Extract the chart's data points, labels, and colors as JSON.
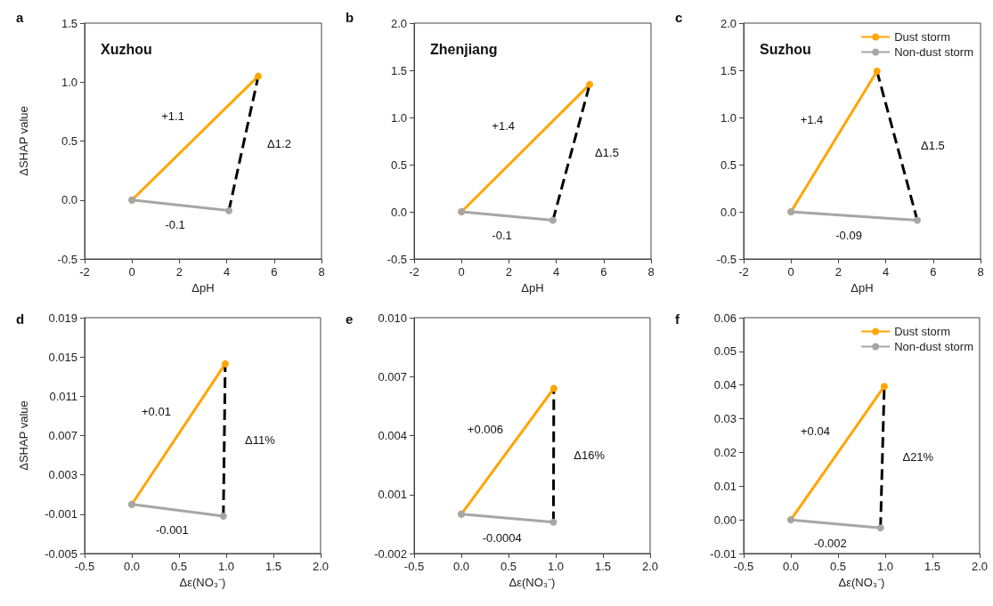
{
  "chart_data": [
    {
      "type": "line",
      "title": "Xuzhou",
      "xlabel": "ΔpH",
      "ylabel": "ΔSHAP value",
      "marker": "circle",
      "xlim": [
        -2,
        8
      ],
      "xticks": [
        -2,
        0,
        2,
        4,
        6,
        8
      ],
      "ylim": [
        -0.5,
        1.5
      ],
      "yticks": [
        -0.5,
        {
          "value": 0,
          "label": "0.0"
        },
        0.5,
        {
          "value": 1,
          "label": "1.0"
        },
        1.5
      ],
      "series": [
        {
          "color": "#ffa500",
          "x": [
            0,
            5.33
          ],
          "values": [
            0,
            1.05
          ]
        },
        {
          "color": "#a6a6a6",
          "x": [
            0,
            4.09
          ],
          "values": [
            0,
            -0.09
          ]
        },
        {
          "color": "#000000",
          "x": [
            4.09,
            5.33
          ],
          "values": [
            -0.09,
            1.05
          ],
          "marker": "none",
          "line_style": "dashed"
        }
      ],
      "annotations": [
        "a",
        "+1.1",
        "-0.1",
        "Δ1.2"
      ]
    },
    {
      "type": "line",
      "title": "Zhenjiang",
      "xlabel": "ΔpH",
      "marker": "circle",
      "xlim": [
        -2,
        8
      ],
      "xticks": [
        -2,
        0,
        2,
        4,
        6,
        8
      ],
      "ylim": [
        -0.5,
        2
      ],
      "yticks": [
        -0.5,
        {
          "value": 0,
          "label": "0.0"
        },
        0.5,
        {
          "value": 1,
          "label": "1.0"
        },
        1.5,
        {
          "value": 2,
          "label": "2.0"
        }
      ],
      "series": [
        {
          "color": "#ffa500",
          "x": [
            0,
            5.41
          ],
          "values": [
            0,
            1.35
          ]
        },
        {
          "color": "#a6a6a6",
          "x": [
            0,
            3.86
          ],
          "values": [
            0,
            -0.09
          ]
        },
        {
          "color": "#000000",
          "x": [
            3.86,
            5.41
          ],
          "values": [
            -0.09,
            1.35
          ],
          "marker": "none",
          "line_style": "dashed"
        }
      ],
      "annotations": [
        "b",
        "+1.4",
        "-0.1",
        "Δ1.5"
      ]
    },
    {
      "type": "line",
      "title": "Suzhou",
      "xlabel": "ΔpH",
      "marker": "circle",
      "legend": "top right",
      "xlim": [
        -2,
        8
      ],
      "xticks": [
        -2,
        0,
        2,
        4,
        6,
        8
      ],
      "ylim": [
        -0.5,
        2
      ],
      "yticks": [
        -0.5,
        {
          "value": 0,
          "label": "0.0"
        },
        0.5,
        {
          "value": 1,
          "label": "1.0"
        },
        1.5,
        {
          "value": 2,
          "label": "2.0"
        }
      ],
      "series": [
        {
          "name": "Dust storm",
          "color": "#ffa500",
          "x": [
            0,
            3.63
          ],
          "values": [
            0,
            1.49
          ]
        },
        {
          "name": "Non-dust storm",
          "color": "#a6a6a6",
          "x": [
            0,
            5.33
          ],
          "values": [
            0,
            -0.09
          ]
        },
        {
          "color": "#000000",
          "x": [
            3.63,
            5.33
          ],
          "values": [
            1.49,
            -0.09
          ],
          "marker": "none",
          "line_style": "dashed"
        }
      ],
      "annotations": [
        "c",
        "+1.4",
        "-0.09",
        "Δ1.5"
      ]
    },
    {
      "type": "line",
      "xlabel": "Δε(NO₃⁻)",
      "ylabel": "ΔSHAP value",
      "marker": "circle",
      "xlim": [
        -0.5,
        2
      ],
      "xticks": [
        -0.5,
        {
          "value": 0,
          "label": "0.0"
        },
        0.5,
        {
          "value": 1,
          "label": "1.0"
        },
        1.5,
        {
          "value": 2,
          "label": "2.0"
        }
      ],
      "ylim": [
        -0.005,
        0.019
      ],
      "yticks": [
        -0.005,
        -0.001,
        0.003,
        0.007,
        0.011,
        0.015,
        0.019
      ],
      "series": [
        {
          "color": "#ffa500",
          "x": [
            0,
            0.99
          ],
          "values": [
            0,
            0.0143
          ]
        },
        {
          "color": "#a6a6a6",
          "x": [
            0,
            0.97
          ],
          "values": [
            0,
            -0.0012
          ]
        },
        {
          "color": "#000000",
          "x": [
            0.97,
            0.99
          ],
          "values": [
            -0.0012,
            0.0143
          ],
          "marker": "none",
          "line_style": "dashed"
        }
      ],
      "annotations": [
        "d",
        "+0.01",
        "-0.001",
        "Δ11%"
      ]
    },
    {
      "type": "line",
      "xlabel": "Δε(NO₃⁻)",
      "marker": "circle",
      "xlim": [
        -0.5,
        2
      ],
      "xticks": [
        -0.5,
        {
          "value": 0,
          "label": "0.0"
        },
        0.5,
        {
          "value": 1,
          "label": "1.0"
        },
        1.5,
        {
          "value": 2,
          "label": "2.0"
        }
      ],
      "ylim": [
        -0.002,
        0.01
      ],
      "yticks": [
        -0.002,
        0.001,
        0.004,
        0.007,
        {
          "value": 0.01,
          "label": "0.010"
        }
      ],
      "series": [
        {
          "color": "#ffa500",
          "x": [
            0,
            0.98
          ],
          "values": [
            0,
            0.0064
          ]
        },
        {
          "color": "#a6a6a6",
          "x": [
            0,
            0.976
          ],
          "values": [
            0,
            -0.0004
          ]
        },
        {
          "color": "#000000",
          "x": [
            0.976,
            0.98
          ],
          "values": [
            -0.0004,
            0.0064
          ],
          "marker": "none",
          "line_style": "dashed"
        }
      ],
      "annotations": [
        "e",
        "+0.006",
        "-0.0004",
        "Δ16%"
      ]
    },
    {
      "type": "line",
      "xlabel": "Δε(NO₃⁻)",
      "marker": "circle",
      "legend": "top right",
      "xlim": [
        -0.5,
        2
      ],
      "xticks": [
        -0.5,
        {
          "value": 0,
          "label": "0.0"
        },
        0.5,
        {
          "value": 1,
          "label": "1.0"
        },
        1.5,
        {
          "value": 2,
          "label": "2.0"
        }
      ],
      "ylim": [
        -0.01,
        0.06
      ],
      "yticks": [
        -0.01,
        {
          "value": 0,
          "label": "0.00"
        },
        0.01,
        0.02,
        0.03,
        0.04,
        0.05,
        0.06
      ],
      "series": [
        {
          "name": "Dust storm",
          "color": "#ffa500",
          "x": [
            0,
            0.99
          ],
          "values": [
            0,
            0.0396
          ]
        },
        {
          "name": "Non-dust storm",
          "color": "#a6a6a6",
          "x": [
            0,
            0.95
          ],
          "values": [
            0,
            -0.0024
          ]
        },
        {
          "color": "#000000",
          "x": [
            0.95,
            0.99
          ],
          "values": [
            -0.0024,
            0.0396
          ],
          "marker": "none",
          "line_style": "dashed"
        }
      ],
      "annotations": [
        "f",
        "+0.04",
        "-0.002",
        "Δ21%"
      ]
    }
  ]
}
